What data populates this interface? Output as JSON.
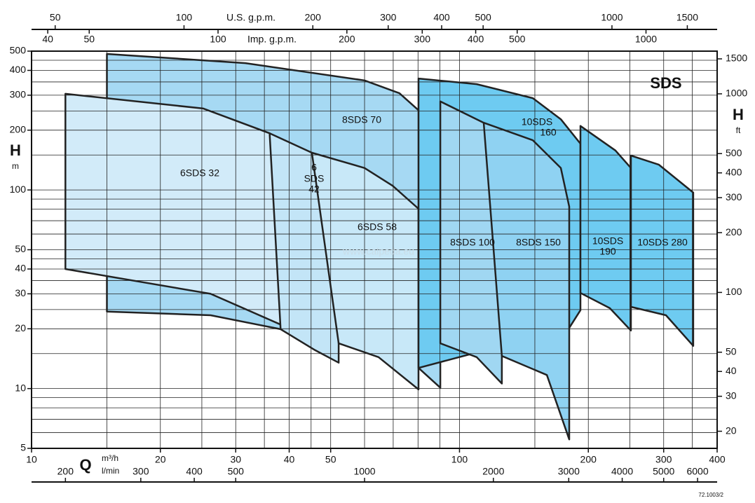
{
  "chart_data": {
    "type": "region",
    "title": "SDS",
    "watermark": "www.calpeda.eu",
    "code": "72.1003/2",
    "log_scale": true,
    "grid": true,
    "xlabel": "Q",
    "xunit": "m³/h",
    "x2unit": "l/min",
    "ylabel": "H",
    "yunit": "m",
    "y2label": "H",
    "y2unit": "ft",
    "x3label": "U.S. g.p.m.",
    "x4label": "Imp. g.p.m.",
    "xlim": [
      10,
      400
    ],
    "xticks": [
      10,
      20,
      30,
      40,
      50,
      100,
      200,
      300,
      400
    ],
    "xgrid": [
      10,
      15,
      20,
      25,
      30,
      35,
      40,
      45,
      50,
      60,
      70,
      80,
      90,
      100,
      150,
      200,
      250,
      300,
      350,
      400
    ],
    "ylim": [
      5,
      500
    ],
    "yticks": [
      5,
      10,
      20,
      30,
      40,
      50,
      100,
      200,
      300,
      400,
      500
    ],
    "ygrid": [
      5,
      6,
      7,
      8,
      9,
      10,
      15,
      20,
      25,
      30,
      35,
      40,
      45,
      50,
      60,
      70,
      80,
      90,
      100,
      150,
      200,
      250,
      300,
      350,
      400,
      450,
      500
    ],
    "x2lim": [
      166.67,
      6666.67
    ],
    "x2ticks": [
      200,
      300,
      400,
      500,
      1000,
      2000,
      3000,
      4000,
      5000,
      6000
    ],
    "x3lim": [
      44.03,
      1761.2
    ],
    "x3ticks": [
      50,
      100,
      200,
      300,
      400,
      500,
      1000,
      1500
    ],
    "x4lim": [
      36.66,
      1466.4
    ],
    "x4ticks": [
      40,
      50,
      100,
      200,
      300,
      400,
      500,
      1000
    ],
    "y2lim": [
      16.4,
      1640.4
    ],
    "y2ticks": [
      20,
      30,
      40,
      50,
      100,
      200,
      300,
      400,
      500,
      1000,
      1500
    ],
    "series": [
      {
        "name": [
          "8SDS 70"
        ],
        "color": "#a6d9f3",
        "top_q": [
          15,
          31.6,
          60,
          72.4,
          90.2
        ],
        "top_h": [
          484,
          435,
          356,
          307,
          201
        ],
        "bottom_q": [
          15,
          26.2,
          38.2,
          52.2,
          80.2,
          90.2
        ],
        "bottom_h": [
          24.4,
          23.4,
          19.9,
          16.9,
          12.7,
          10.1
        ]
      },
      {
        "name": [
          "6SDS 32"
        ],
        "color": "#d2ebf9",
        "top_q": [
          12,
          25.2,
          36,
          41,
          42.3
        ],
        "top_h": [
          305,
          257,
          193,
          150,
          124
        ],
        "bottom_q": [
          12,
          26.2,
          38.2,
          42.3
        ],
        "bottom_h": [
          40,
          30,
          21,
          18
        ]
      },
      {
        "name": [
          "6",
          "SDS",
          "42"
        ],
        "color": "#c3e5f7",
        "top_q": [
          36,
          45.2,
          52.2
        ],
        "top_h": [
          193,
          154,
          121
        ],
        "bottom_q": [
          38.2,
          46,
          52.2
        ],
        "bottom_h": [
          19.9,
          15.6,
          13.5
        ]
      },
      {
        "name": [
          "6SDS 58"
        ],
        "color": "#c8e8f8",
        "top_q": [
          45.2,
          60,
          69.8,
          80.2
        ],
        "top_h": [
          154,
          129,
          105,
          80.4
        ],
        "bottom_q": [
          52.2,
          64.7,
          80.2
        ],
        "bottom_h": [
          16.9,
          14.4,
          9.9
        ]
      },
      {
        "name": [
          "10SDS",
          "160"
        ],
        "color": "#6ecbf1",
        "top_q": [
          80.2,
          109.7,
          148.4,
          172.5,
          191.7
        ],
        "top_h": [
          364,
          341,
          290,
          227,
          171
        ],
        "bottom_q": [
          80.2,
          180.5,
          191.7
        ],
        "bottom_h": [
          12.7,
          20.2,
          24.8
        ]
      },
      {
        "name": [
          "8SDS 100"
        ],
        "color": "#a0d7f2",
        "top_q": [
          90.2,
          113.9,
          125.6
        ],
        "top_h": [
          279,
          218,
          168
        ],
        "bottom_q": [
          90.2,
          109.7,
          125.6
        ],
        "bottom_h": [
          16.9,
          14.4,
          10.6
        ]
      },
      {
        "name": [
          "8SDS 150"
        ],
        "color": "#8fd2f2",
        "top_q": [
          113.9,
          148.4,
          172.5,
          180.5
        ],
        "top_h": [
          218,
          178,
          129,
          82.4
        ],
        "bottom_q": [
          125.6,
          160,
          180.5
        ],
        "bottom_h": [
          14.6,
          11.7,
          5.55
        ]
      },
      {
        "name": [
          "10SDS",
          "190"
        ],
        "color": "#6ecbf1",
        "top_q": [
          191.7,
          231.4,
          251.5
        ],
        "top_h": [
          210,
          158,
          129
        ],
        "bottom_q": [
          191.7,
          224.5,
          251.5
        ],
        "bottom_h": [
          30.3,
          25.4,
          19.6
        ]
      },
      {
        "name": [
          "10SDS 280"
        ],
        "color": "#6ecbf1",
        "top_q": [
          251.5,
          292.4,
          351.7
        ],
        "top_h": [
          149,
          134,
          97
        ],
        "bottom_q": [
          251.5,
          303.7,
          351.7
        ],
        "bottom_h": [
          25.8,
          23.4,
          16.4
        ]
      }
    ]
  }
}
